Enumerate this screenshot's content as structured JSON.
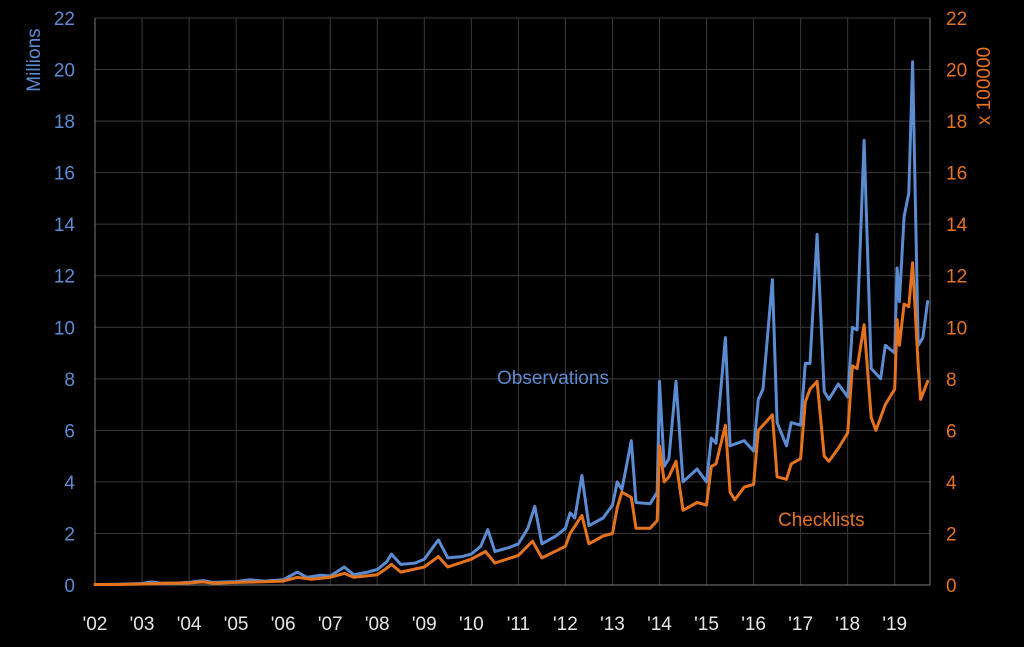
{
  "chart_data": {
    "type": "line",
    "ylabel_left": "Millions",
    "ylabel_right": "x 100000",
    "ylim": [
      0,
      22
    ],
    "yticks": [
      0,
      2,
      4,
      6,
      8,
      10,
      12,
      14,
      16,
      18,
      20,
      22
    ],
    "xlim": [
      2002,
      2019.75
    ],
    "xticks": [
      {
        "x": 2002,
        "label": "'02"
      },
      {
        "x": 2003,
        "label": "'03"
      },
      {
        "x": 2004,
        "label": "'04"
      },
      {
        "x": 2005,
        "label": "'05"
      },
      {
        "x": 2006,
        "label": "'06"
      },
      {
        "x": 2007,
        "label": "'07"
      },
      {
        "x": 2008,
        "label": "'08"
      },
      {
        "x": 2009,
        "label": "'09"
      },
      {
        "x": 2010,
        "label": "'10"
      },
      {
        "x": 2011,
        "label": "'11"
      },
      {
        "x": 2012,
        "label": "'12"
      },
      {
        "x": 2013,
        "label": "'13"
      },
      {
        "x": 2014,
        "label": "'14"
      },
      {
        "x": 2015,
        "label": "'15"
      },
      {
        "x": 2016,
        "label": "'16"
      },
      {
        "x": 2017,
        "label": "'17"
      },
      {
        "x": 2018,
        "label": "'18"
      },
      {
        "x": 2019,
        "label": "'19"
      }
    ],
    "grid": true,
    "series": [
      {
        "name": "Observations",
        "axis": "left",
        "color": "#5b8bd0",
        "points": [
          [
            2002.0,
            0.02
          ],
          [
            2002.5,
            0.03
          ],
          [
            2003.0,
            0.06
          ],
          [
            2003.2,
            0.12
          ],
          [
            2003.4,
            0.07
          ],
          [
            2003.8,
            0.08
          ],
          [
            2004.0,
            0.1
          ],
          [
            2004.3,
            0.17
          ],
          [
            2004.5,
            0.1
          ],
          [
            2004.8,
            0.12
          ],
          [
            2005.0,
            0.13
          ],
          [
            2005.3,
            0.2
          ],
          [
            2005.6,
            0.15
          ],
          [
            2006.0,
            0.2
          ],
          [
            2006.3,
            0.5
          ],
          [
            2006.5,
            0.3
          ],
          [
            2006.8,
            0.38
          ],
          [
            2007.0,
            0.35
          ],
          [
            2007.3,
            0.7
          ],
          [
            2007.5,
            0.4
          ],
          [
            2007.8,
            0.5
          ],
          [
            2008.0,
            0.6
          ],
          [
            2008.2,
            0.9
          ],
          [
            2008.3,
            1.2
          ],
          [
            2008.5,
            0.8
          ],
          [
            2008.8,
            0.85
          ],
          [
            2009.0,
            1.0
          ],
          [
            2009.2,
            1.5
          ],
          [
            2009.3,
            1.75
          ],
          [
            2009.5,
            1.05
          ],
          [
            2009.8,
            1.1
          ],
          [
            2010.0,
            1.2
          ],
          [
            2010.2,
            1.5
          ],
          [
            2010.35,
            2.15
          ],
          [
            2010.5,
            1.3
          ],
          [
            2010.8,
            1.45
          ],
          [
            2011.0,
            1.6
          ],
          [
            2011.2,
            2.2
          ],
          [
            2011.35,
            3.05
          ],
          [
            2011.5,
            1.6
          ],
          [
            2011.8,
            1.9
          ],
          [
            2012.0,
            2.2
          ],
          [
            2012.1,
            2.8
          ],
          [
            2012.2,
            2.6
          ],
          [
            2012.35,
            4.25
          ],
          [
            2012.5,
            2.3
          ],
          [
            2012.8,
            2.6
          ],
          [
            2013.0,
            3.1
          ],
          [
            2013.1,
            4.0
          ],
          [
            2013.2,
            3.7
          ],
          [
            2013.4,
            5.6
          ],
          [
            2013.5,
            3.2
          ],
          [
            2013.8,
            3.15
          ],
          [
            2013.95,
            3.6
          ],
          [
            2014.0,
            7.9
          ],
          [
            2014.1,
            4.6
          ],
          [
            2014.2,
            4.9
          ],
          [
            2014.35,
            7.9
          ],
          [
            2014.5,
            4.0
          ],
          [
            2014.8,
            4.5
          ],
          [
            2015.0,
            4.0
          ],
          [
            2015.1,
            5.7
          ],
          [
            2015.2,
            5.5
          ],
          [
            2015.4,
            9.6
          ],
          [
            2015.5,
            5.4
          ],
          [
            2015.8,
            5.6
          ],
          [
            2016.0,
            5.2
          ],
          [
            2016.1,
            7.2
          ],
          [
            2016.2,
            7.6
          ],
          [
            2016.4,
            11.85
          ],
          [
            2016.5,
            6.3
          ],
          [
            2016.7,
            5.4
          ],
          [
            2016.8,
            6.3
          ],
          [
            2017.0,
            6.2
          ],
          [
            2017.1,
            8.6
          ],
          [
            2017.2,
            8.6
          ],
          [
            2017.35,
            13.6
          ],
          [
            2017.5,
            7.5
          ],
          [
            2017.6,
            7.2
          ],
          [
            2017.8,
            7.8
          ],
          [
            2018.0,
            7.3
          ],
          [
            2018.1,
            10.0
          ],
          [
            2018.2,
            9.9
          ],
          [
            2018.35,
            17.25
          ],
          [
            2018.5,
            8.4
          ],
          [
            2018.7,
            8.0
          ],
          [
            2018.8,
            9.3
          ],
          [
            2019.0,
            9.0
          ],
          [
            2019.05,
            12.3
          ],
          [
            2019.1,
            11.0
          ],
          [
            2019.2,
            14.3
          ],
          [
            2019.3,
            15.2
          ],
          [
            2019.38,
            20.3
          ],
          [
            2019.5,
            9.3
          ],
          [
            2019.6,
            9.6
          ],
          [
            2019.7,
            11.0
          ]
        ]
      },
      {
        "name": "Checklists",
        "axis": "right",
        "color": "#e5731e",
        "points": [
          [
            2002.0,
            0.02
          ],
          [
            2002.5,
            0.02
          ],
          [
            2003.0,
            0.04
          ],
          [
            2003.5,
            0.07
          ],
          [
            2004.0,
            0.08
          ],
          [
            2004.3,
            0.12
          ],
          [
            2004.5,
            0.07
          ],
          [
            2005.0,
            0.1
          ],
          [
            2005.5,
            0.12
          ],
          [
            2006.0,
            0.15
          ],
          [
            2006.3,
            0.3
          ],
          [
            2006.6,
            0.22
          ],
          [
            2007.0,
            0.3
          ],
          [
            2007.3,
            0.45
          ],
          [
            2007.5,
            0.3
          ],
          [
            2008.0,
            0.4
          ],
          [
            2008.2,
            0.65
          ],
          [
            2008.3,
            0.8
          ],
          [
            2008.5,
            0.5
          ],
          [
            2009.0,
            0.7
          ],
          [
            2009.3,
            1.1
          ],
          [
            2009.5,
            0.7
          ],
          [
            2010.0,
            1.0
          ],
          [
            2010.3,
            1.3
          ],
          [
            2010.5,
            0.85
          ],
          [
            2011.0,
            1.15
          ],
          [
            2011.3,
            1.7
          ],
          [
            2011.5,
            1.05
          ],
          [
            2012.0,
            1.5
          ],
          [
            2012.1,
            2.0
          ],
          [
            2012.35,
            2.7
          ],
          [
            2012.5,
            1.6
          ],
          [
            2012.8,
            1.9
          ],
          [
            2013.0,
            2.0
          ],
          [
            2013.1,
            3.0
          ],
          [
            2013.2,
            3.6
          ],
          [
            2013.4,
            3.4
          ],
          [
            2013.5,
            2.2
          ],
          [
            2013.8,
            2.2
          ],
          [
            2013.95,
            2.5
          ],
          [
            2014.0,
            5.4
          ],
          [
            2014.1,
            4.0
          ],
          [
            2014.2,
            4.2
          ],
          [
            2014.35,
            4.8
          ],
          [
            2014.5,
            2.9
          ],
          [
            2014.8,
            3.2
          ],
          [
            2015.0,
            3.1
          ],
          [
            2015.1,
            4.6
          ],
          [
            2015.2,
            4.7
          ],
          [
            2015.4,
            6.2
          ],
          [
            2015.5,
            3.6
          ],
          [
            2015.6,
            3.3
          ],
          [
            2015.8,
            3.8
          ],
          [
            2016.0,
            3.9
          ],
          [
            2016.1,
            6.0
          ],
          [
            2016.2,
            6.2
          ],
          [
            2016.4,
            6.6
          ],
          [
            2016.5,
            4.2
          ],
          [
            2016.7,
            4.1
          ],
          [
            2016.8,
            4.7
          ],
          [
            2017.0,
            4.9
          ],
          [
            2017.1,
            7.1
          ],
          [
            2017.2,
            7.6
          ],
          [
            2017.35,
            7.9
          ],
          [
            2017.5,
            5.0
          ],
          [
            2017.6,
            4.8
          ],
          [
            2017.8,
            5.3
          ],
          [
            2018.0,
            5.9
          ],
          [
            2018.1,
            8.5
          ],
          [
            2018.2,
            8.4
          ],
          [
            2018.35,
            10.1
          ],
          [
            2018.5,
            6.5
          ],
          [
            2018.6,
            6.0
          ],
          [
            2018.8,
            7.0
          ],
          [
            2019.0,
            7.6
          ],
          [
            2019.05,
            10.3
          ],
          [
            2019.1,
            9.3
          ],
          [
            2019.2,
            10.9
          ],
          [
            2019.3,
            10.8
          ],
          [
            2019.38,
            12.5
          ],
          [
            2019.5,
            8.5
          ],
          [
            2019.55,
            7.2
          ],
          [
            2019.7,
            7.9
          ]
        ]
      }
    ],
    "annotations": [
      {
        "text": "Observations",
        "series": "Observations"
      },
      {
        "text": "Checklists",
        "series": "Checklists"
      }
    ]
  }
}
